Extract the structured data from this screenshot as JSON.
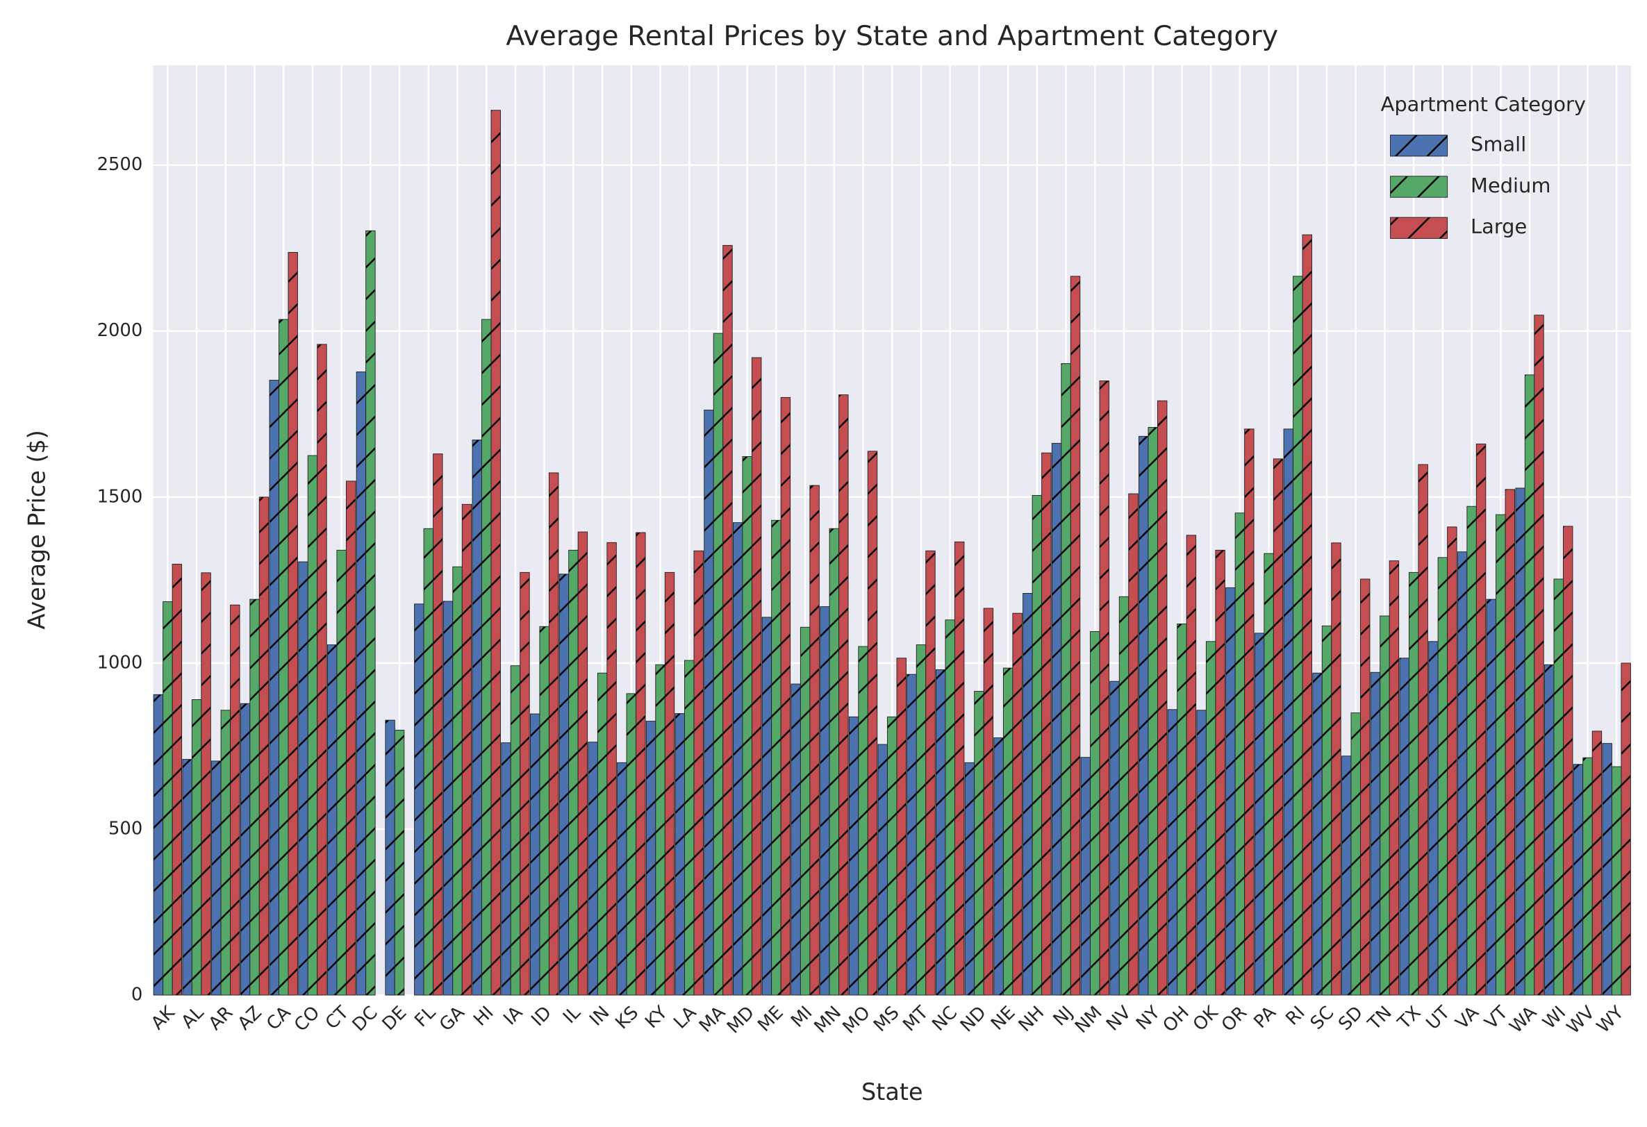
{
  "chart_data": {
    "type": "bar",
    "title": "Average Rental Prices by State and Apartment Category",
    "x_label": "State",
    "y_label": "Average Price ($)",
    "legend_title": "Apartment Category",
    "legend": "upper right",
    "grid": true,
    "categories": [
      "AK",
      "AL",
      "AR",
      "AZ",
      "CA",
      "CO",
      "CT",
      "DC",
      "DE",
      "FL",
      "GA",
      "HI",
      "IA",
      "ID",
      "IL",
      "IN",
      "KS",
      "KY",
      "LA",
      "MA",
      "MD",
      "ME",
      "MI",
      "MN",
      "MO",
      "MS",
      "MT",
      "NC",
      "ND",
      "NE",
      "NH",
      "NJ",
      "NM",
      "NV",
      "NY",
      "OH",
      "OK",
      "OR",
      "PA",
      "RI",
      "SC",
      "SD",
      "TN",
      "TX",
      "UT",
      "VA",
      "VT",
      "WA",
      "WI",
      "WV",
      "WY"
    ],
    "series": [
      {
        "name": "Small",
        "color": "#4c72b0",
        "values": [
          905,
          710,
          705,
          878,
          1852,
          1305,
          1055,
          1877,
          828,
          1178,
          1186,
          1672,
          760,
          847,
          1268,
          762,
          700,
          825,
          848,
          1762,
          1423,
          1138,
          937,
          1170,
          838,
          755,
          966,
          980,
          700,
          775,
          1210,
          1662,
          716,
          945,
          1683,
          860,
          858,
          1227,
          1090,
          1705,
          970,
          720,
          972,
          1015,
          1065,
          1335,
          1192,
          1527,
          995,
          695,
          758
        ]
      },
      {
        "name": "Medium",
        "color": "#55a868",
        "values": [
          1185,
          890,
          858,
          1192,
          2035,
          1625,
          1340,
          2302,
          798,
          1405,
          1290,
          2035,
          992,
          1110,
          1340,
          970,
          908,
          995,
          1008,
          1993,
          1622,
          1430,
          1108,
          1405,
          1050,
          838,
          1055,
          1130,
          915,
          985,
          1505,
          1902,
          1095,
          1200,
          1710,
          1118,
          1065,
          1452,
          1330,
          2165,
          1112,
          850,
          1142,
          1273,
          1318,
          1472,
          1447,
          1868,
          1253,
          715,
          688
        ]
      },
      {
        "name": "Large",
        "color": "#c44e52",
        "values": [
          1298,
          1272,
          1175,
          1500,
          2237,
          1960,
          1548,
          null,
          null,
          1630,
          1478,
          2665,
          1273,
          1573,
          1395,
          1363,
          1393,
          1273,
          1338,
          2258,
          1920,
          1800,
          1535,
          1808,
          1638,
          1015,
          1338,
          1365,
          1165,
          1150,
          1633,
          2165,
          1850,
          1510,
          1790,
          1385,
          1340,
          1705,
          1615,
          2290,
          1362,
          1253,
          1308,
          1598,
          1410,
          1660,
          1523,
          2048,
          1412,
          795,
          1000
        ]
      }
    ],
    "ylim": [
      0,
      2800
    ],
    "yticks": [
      0,
      500,
      1000,
      1500,
      2000,
      2500
    ]
  }
}
